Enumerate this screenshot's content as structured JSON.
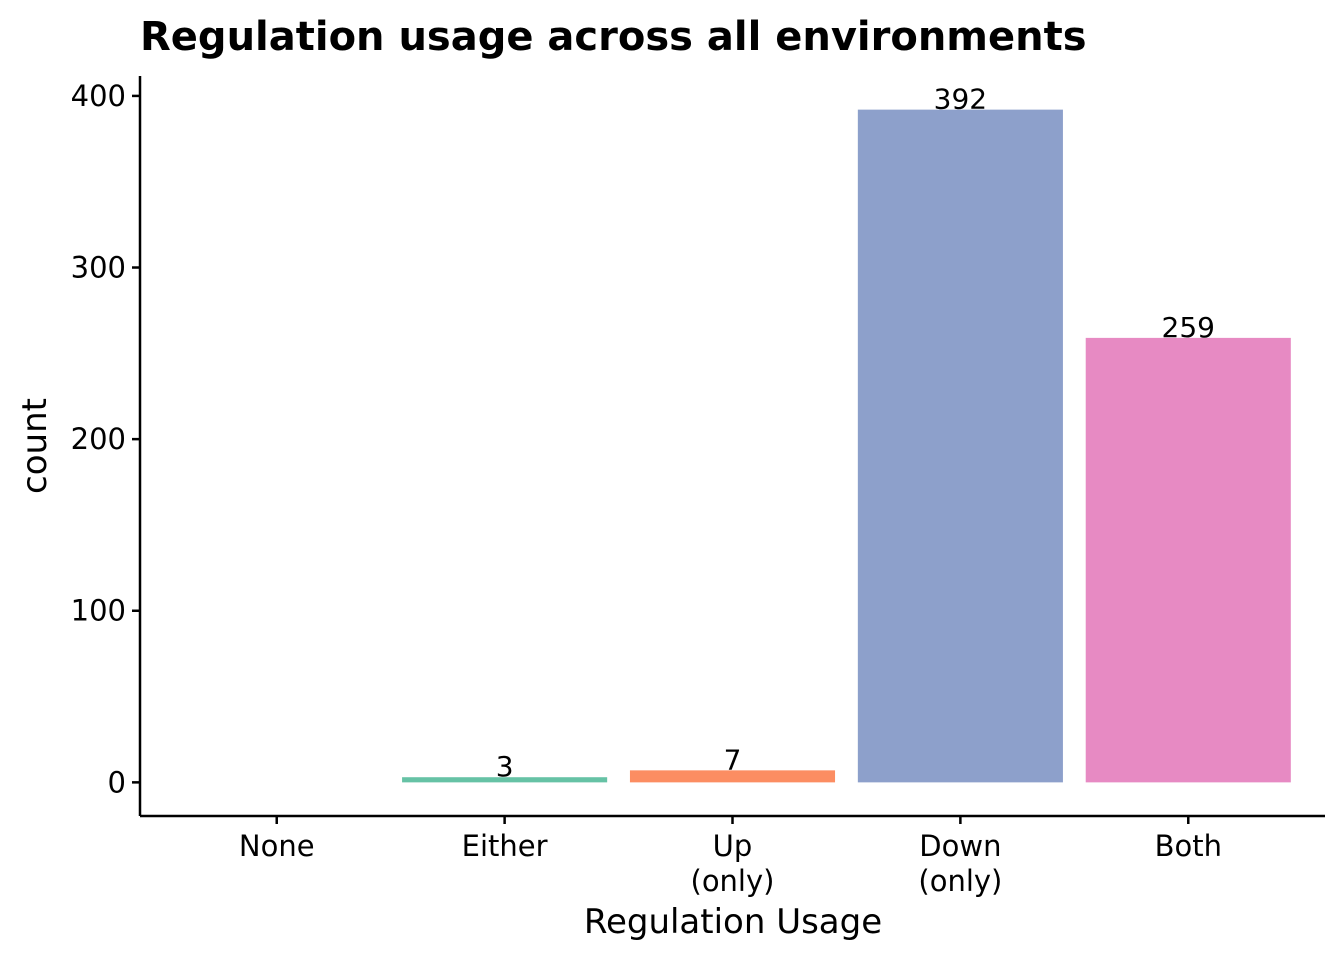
{
  "chart_data": {
    "type": "bar",
    "title": "Regulation usage across all environments",
    "xlabel": "Regulation Usage",
    "ylabel": "count",
    "categories": [
      [
        "None"
      ],
      [
        "Either"
      ],
      [
        "Up",
        "(only)"
      ],
      [
        "Down",
        "(only)"
      ],
      [
        "Both"
      ]
    ],
    "values": [
      0,
      3,
      7,
      392,
      259
    ],
    "data_labels": [
      "",
      "3",
      "7",
      "392",
      "259"
    ],
    "colors": [
      "#66c2a5",
      "#66c2a5",
      "#fc8d62",
      "#8da0cb",
      "#e78ac3"
    ],
    "yticks": [
      0,
      100,
      200,
      300,
      400
    ],
    "ytick_labels": [
      "0",
      "100",
      "200",
      "300",
      "400"
    ],
    "ylim": [
      -19.6,
      411.6
    ],
    "grid": false,
    "legend": "none"
  }
}
